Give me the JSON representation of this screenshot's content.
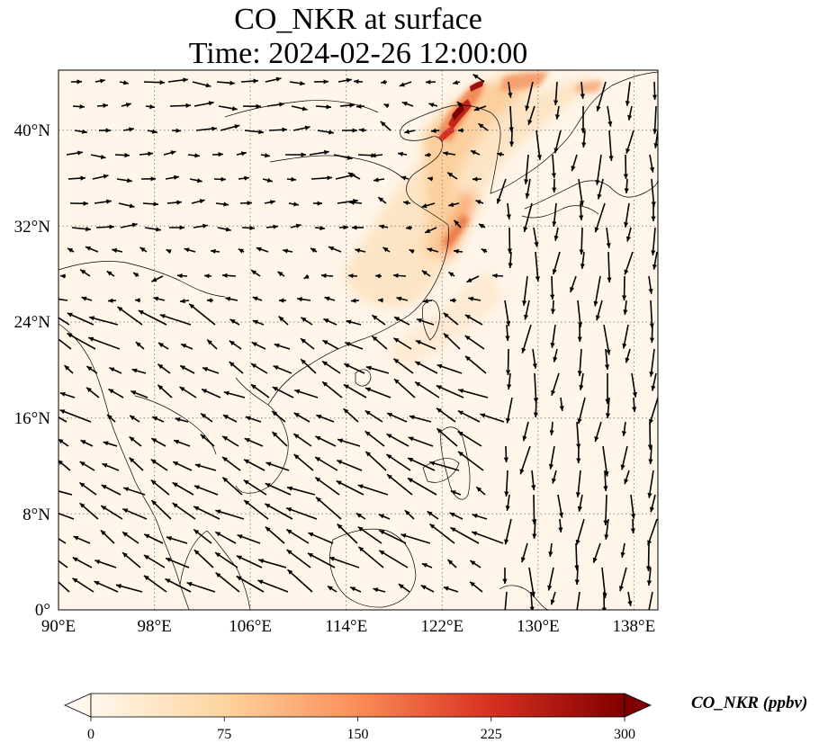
{
  "title": {
    "line1": "CO_NKR at surface",
    "line2": "Time: 2024-02-26 12:00:00"
  },
  "map": {
    "projection": "PlateCarree",
    "lon_range": [
      90,
      140
    ],
    "lat_range": [
      0,
      45
    ],
    "gridlines": "dotted grey",
    "lon_ticks": [
      "90°E",
      "98°E",
      "106°E",
      "114°E",
      "122°E",
      "130°E",
      "138°E"
    ],
    "lat_ticks": [
      "0°",
      "8°N",
      "16°N",
      "24°N",
      "32°N",
      "40°N"
    ],
    "colormap": "OrRd",
    "wind_vectors": "black quiver arrows"
  },
  "colorbar": {
    "label": "CO_NKR (ppbv)",
    "ticks": [
      "0",
      "75",
      "150",
      "225",
      "300"
    ],
    "range": [
      0,
      300
    ],
    "extend": "both",
    "colors": [
      "#fff7ec",
      "#fdd49e",
      "#fc8d59",
      "#d7301f",
      "#7f0000"
    ]
  }
}
